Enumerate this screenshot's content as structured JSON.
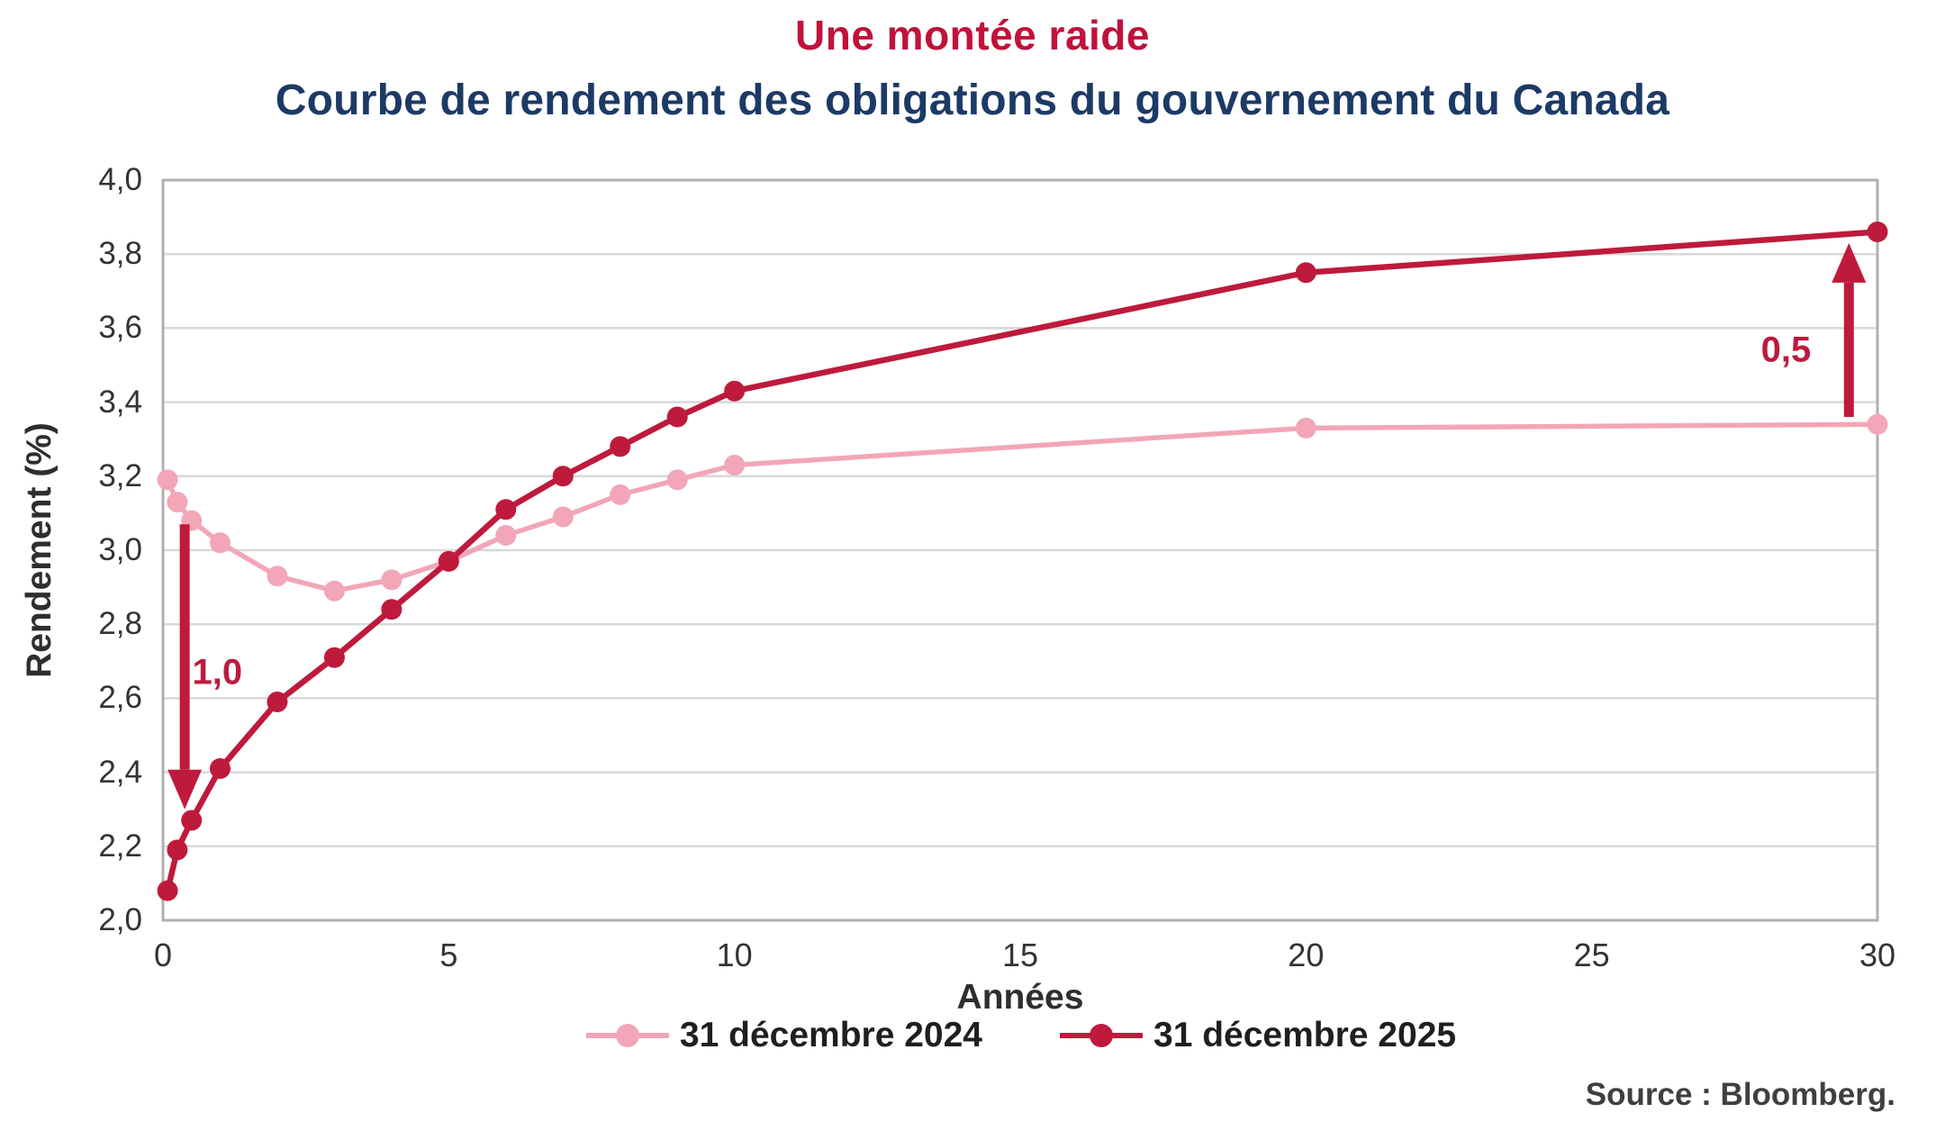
{
  "header": {
    "title": "Une montée raide",
    "subtitle": "Courbe de rendement des obligations du gouvernement du Canada"
  },
  "colors": {
    "title_red": "#C0123A",
    "subtitle_navy": "#1C3A66",
    "series_2024_pink": "#F2A6B8",
    "series_2025_red": "#BE1A3C",
    "grid": "#D8D8D8",
    "border": "#AFAFAF",
    "tick_text": "#333333"
  },
  "chart_data": {
    "type": "line",
    "title": "Une montée raide",
    "subtitle": "Courbe de rendement des obligations du gouvernement du Canada",
    "xlabel": "Années",
    "ylabel": "Rendement (%)",
    "xlim": [
      0,
      30
    ],
    "ylim": [
      2.0,
      4.0
    ],
    "grid": "horizontal",
    "legend_position": "bottom",
    "x": [
      0.08,
      0.25,
      0.5,
      1,
      2,
      3,
      4,
      5,
      6,
      7,
      8,
      9,
      10,
      20,
      30
    ],
    "series": [
      {
        "name": "31 décembre 2024",
        "color": "#F2A6B8",
        "values": [
          3.19,
          3.13,
          3.08,
          3.02,
          2.93,
          2.89,
          2.92,
          2.97,
          3.04,
          3.09,
          3.15,
          3.19,
          3.23,
          3.33,
          3.34
        ]
      },
      {
        "name": "31 décembre 2025",
        "color": "#BE1A3C",
        "values": [
          2.08,
          2.19,
          2.27,
          2.41,
          2.59,
          2.71,
          2.84,
          2.97,
          3.11,
          3.2,
          3.28,
          3.36,
          3.43,
          3.75,
          3.86
        ]
      }
    ],
    "x_ticks": [
      {
        "value": 0,
        "label": "0"
      },
      {
        "value": 5,
        "label": "5"
      },
      {
        "value": 10,
        "label": "10"
      },
      {
        "value": 15,
        "label": "15"
      },
      {
        "value": 20,
        "label": "20"
      },
      {
        "value": 25,
        "label": "25"
      },
      {
        "value": 30,
        "label": "30"
      }
    ],
    "y_ticks": [
      {
        "value": 4.0,
        "label": "4,0"
      },
      {
        "value": 3.8,
        "label": "3,8"
      },
      {
        "value": 3.6,
        "label": "3,6"
      },
      {
        "value": 3.4,
        "label": "3,4"
      },
      {
        "value": 3.2,
        "label": "3,2"
      },
      {
        "value": 3.0,
        "label": "3,0"
      },
      {
        "value": 2.8,
        "label": "2,8"
      },
      {
        "value": 2.6,
        "label": "2,6"
      },
      {
        "value": 2.4,
        "label": "2,4"
      },
      {
        "value": 2.2,
        "label": "2,2"
      },
      {
        "value": 2.0,
        "label": "2,0"
      }
    ],
    "annotations": [
      {
        "label": "1,0",
        "direction": "down",
        "x": 0.38,
        "from": 3.07,
        "to": 2.3,
        "label_x": 0.95,
        "label_y": 2.67
      },
      {
        "label": "0,5",
        "direction": "up",
        "x": 29.5,
        "from": 3.36,
        "to": 3.83,
        "label_x": 28.4,
        "label_y": 3.54
      }
    ]
  },
  "footer": {
    "source": "Source : Bloomberg."
  }
}
